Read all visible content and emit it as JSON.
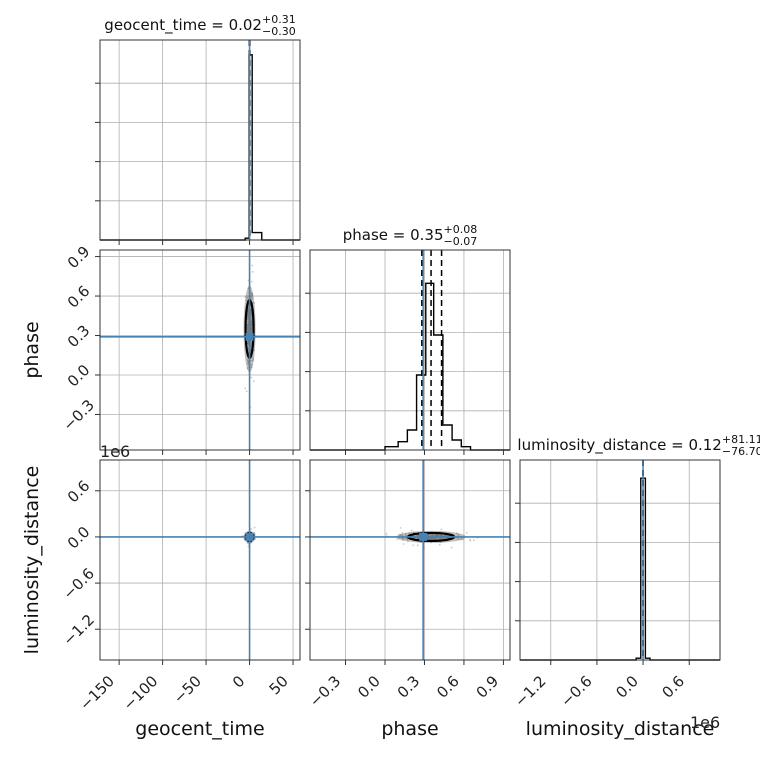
{
  "figure": {
    "type": "corner-plot",
    "truth_color": "#4682b4",
    "hist_color": "#000000",
    "sample_color": "#9e9e9e",
    "axis_labels": {
      "geocent_time": "geocent_time",
      "phase": "phase",
      "luminosity_distance": "luminosity_distance"
    }
  },
  "chart_data": [
    {
      "type": "histogram",
      "parameter": "geocent_time",
      "title": {
        "main": "geocent_time = 0.02",
        "sup": "+0.31",
        "sub": "−0.30"
      },
      "xlim": [
        -172,
        58
      ],
      "bins": [
        {
          "x0": -5,
          "x1": -0.5,
          "count": 0.01
        },
        {
          "x0": -0.5,
          "x1": 3,
          "count": 1.0
        },
        {
          "x0": 3,
          "x1": 14,
          "count": 0.04
        }
      ],
      "ymax": 1.08,
      "quantiles": [
        -0.28,
        0.02,
        0.33
      ],
      "truth": 0.0
    },
    {
      "type": "scatter-contour",
      "x": "geocent_time",
      "y": "phase",
      "xlim": [
        -172,
        58
      ],
      "ylim": [
        -0.57,
        0.95
      ],
      "y_ticks": [
        "0.9",
        "0.6",
        "0.3",
        "0.0",
        "−0.3"
      ],
      "y_tick_values": [
        0.9,
        0.6,
        0.3,
        0.0,
        -0.3
      ],
      "truth": {
        "x": 0.0,
        "y": 0.29
      },
      "sample_center": {
        "x": 0.0,
        "y": 0.35
      },
      "sample_spread": {
        "x": 1.5,
        "y": 0.1
      }
    },
    {
      "type": "histogram",
      "parameter": "phase",
      "title": {
        "main": "phase = 0.35",
        "sup": "+0.08",
        "sub": "−0.07"
      },
      "xlim": [
        -0.57,
        0.95
      ],
      "bins": [
        {
          "x0": 0.0,
          "x1": 0.1,
          "count": 0.02
        },
        {
          "x0": 0.1,
          "x1": 0.17,
          "count": 0.05
        },
        {
          "x0": 0.17,
          "x1": 0.24,
          "count": 0.12
        },
        {
          "x0": 0.24,
          "x1": 0.31,
          "count": 0.45
        },
        {
          "x0": 0.31,
          "x1": 0.37,
          "count": 1.0
        },
        {
          "x0": 0.37,
          "x1": 0.44,
          "count": 0.69
        },
        {
          "x0": 0.44,
          "x1": 0.51,
          "count": 0.15
        },
        {
          "x0": 0.51,
          "x1": 0.58,
          "count": 0.06
        },
        {
          "x0": 0.58,
          "x1": 0.65,
          "count": 0.02
        }
      ],
      "ymax": 1.2,
      "quantiles": [
        0.28,
        0.35,
        0.43
      ],
      "truth": 0.29
    },
    {
      "type": "scatter-contour",
      "x": "geocent_time",
      "y": "luminosity_distance",
      "xlim": [
        -172,
        58
      ],
      "ylim": [
        -1.6,
        1.0
      ],
      "y_ticks": [
        "0.6",
        "0.0",
        "−0.6",
        "−1.2"
      ],
      "y_tick_values": [
        0.6,
        0.0,
        -0.6,
        -1.2
      ],
      "offset_label": "1e6",
      "truth": {
        "x": 0.0,
        "y": 0.0
      },
      "sample_center": {
        "x": 0.0,
        "y": 0.0
      },
      "sample_spread": {
        "x": 1.5,
        "y": 0.02
      }
    },
    {
      "type": "scatter-contour",
      "x": "phase",
      "y": "luminosity_distance",
      "xlim": [
        -0.57,
        0.95
      ],
      "ylim": [
        -1.6,
        1.0
      ],
      "truth": {
        "x": 0.29,
        "y": 0.0
      },
      "sample_center": {
        "x": 0.35,
        "y": 0.0
      },
      "sample_spread": {
        "x": 0.08,
        "y": 0.02
      }
    },
    {
      "type": "histogram",
      "parameter": "luminosity_distance",
      "title": {
        "main": "luminosity_distance = 0.12",
        "sup": "+81.11",
        "sub": "−76.70"
      },
      "xlim": [
        -1.6,
        1.0
      ],
      "bins": [
        {
          "x0": -0.09,
          "x1": -0.03,
          "count": 0.01
        },
        {
          "x0": -0.03,
          "x1": 0.03,
          "count": 1.0
        },
        {
          "x0": 0.03,
          "x1": 0.09,
          "count": 0.01
        }
      ],
      "ymax": 1.1,
      "quantiles": [
        -8e-05,
        1e-07,
        8e-05
      ],
      "truth": 0.0,
      "offset_label": "1e6"
    }
  ],
  "x_ticks": {
    "geocent_time": {
      "labels": [
        "−150",
        "−100",
        "−50",
        "0",
        "50"
      ],
      "values": [
        -150,
        -100,
        -50,
        0,
        50
      ]
    },
    "phase": {
      "labels": [
        "−0.3",
        "0.0",
        "0.3",
        "0.6",
        "0.9"
      ],
      "values": [
        -0.3,
        0.0,
        0.3,
        0.6,
        0.9
      ]
    },
    "luminosity_distance": {
      "labels": [
        "−1.2",
        "−0.6",
        "0.0",
        "0.6"
      ],
      "values": [
        -1.2,
        -0.6,
        0.0,
        0.6
      ]
    }
  }
}
